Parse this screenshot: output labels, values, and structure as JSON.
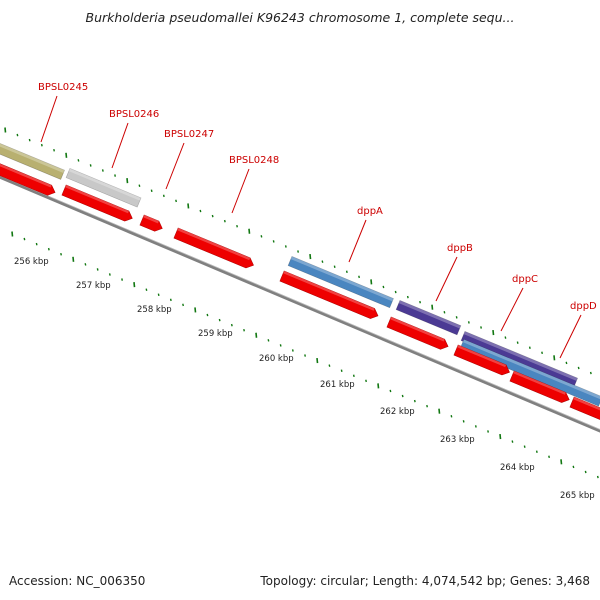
{
  "title": "Burkholderia pseudomallei K96243 chromosome 1, complete sequ...",
  "footer": {
    "accession": "Accession: NC_006350",
    "summary": "Topology: circular; Length: 4,074,542 bp; Genes: 3,468"
  },
  "colors": {
    "cds_red": "#ee0000",
    "backbone": "#808080",
    "tick_green": "#117711",
    "label_red": "#cc0000",
    "gene_olive": "#b8b070",
    "gene_gray": "#c8c8c8",
    "gene_blue": "#4a86c0",
    "gene_purple": "#4b3a94"
  },
  "gene_labels": [
    {
      "text": "BPSL0245"
    },
    {
      "text": "BPSL0246"
    },
    {
      "text": "BPSL0247"
    },
    {
      "text": "BPSL0248"
    },
    {
      "text": "dppA"
    },
    {
      "text": "dppB"
    },
    {
      "text": "dppC"
    },
    {
      "text": "dppD"
    }
  ],
  "scale_labels": [
    {
      "text": "256 kbp"
    },
    {
      "text": "257 kbp"
    },
    {
      "text": "258 kbp"
    },
    {
      "text": "259 kbp"
    },
    {
      "text": "260 kbp"
    },
    {
      "text": "261 kbp"
    },
    {
      "text": "262 kbp"
    },
    {
      "text": "263 kbp"
    },
    {
      "text": "264 kbp"
    },
    {
      "text": "265 kbp"
    }
  ]
}
